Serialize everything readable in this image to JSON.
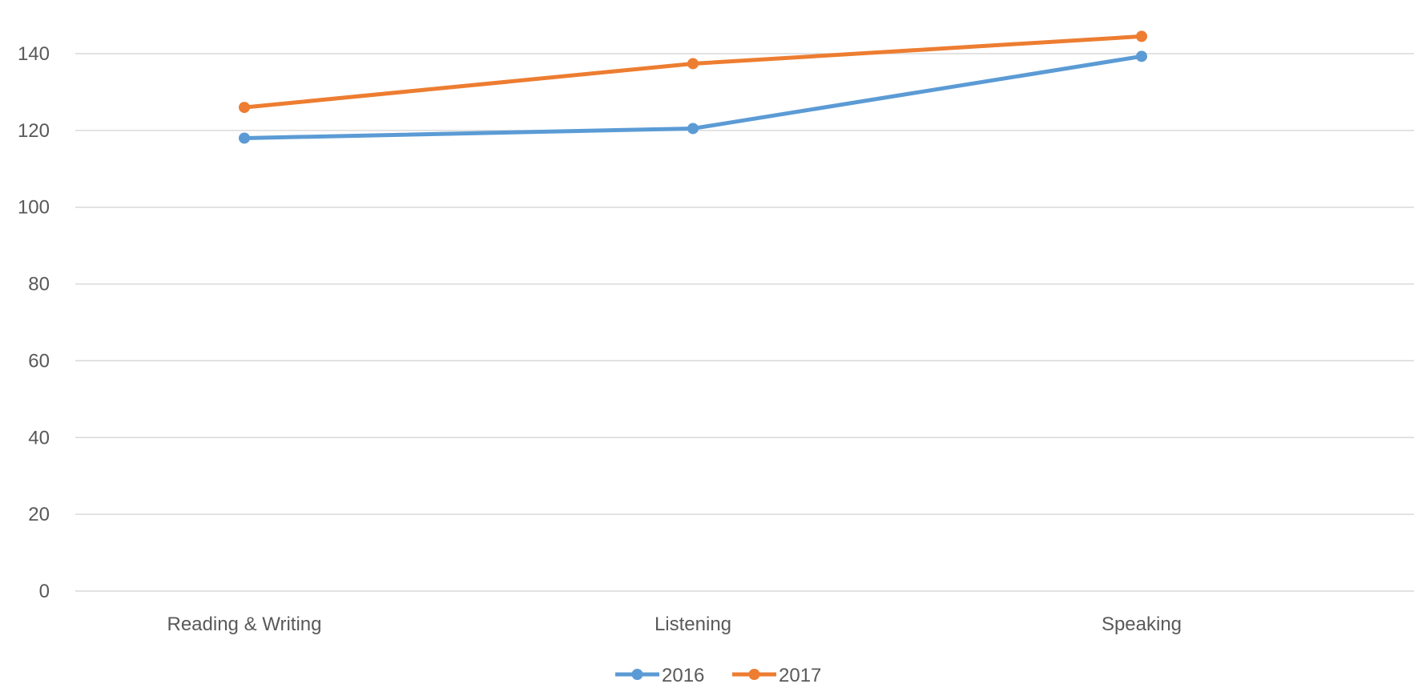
{
  "chart_data": {
    "type": "line",
    "categories": [
      "Reading & Writing",
      "Listening",
      "Speaking"
    ],
    "series": [
      {
        "name": "2016",
        "values": [
          118,
          120.5,
          139.3
        ],
        "color": "#5B9BD5"
      },
      {
        "name": "2017",
        "values": [
          126,
          137.4,
          144.5
        ],
        "color": "#ED7D31"
      }
    ],
    "ylim": [
      0,
      140
    ],
    "yticks": [
      "0",
      "20",
      "40",
      "60",
      "80",
      "100",
      "120",
      "140"
    ],
    "grid": true,
    "legend_position": "bottom",
    "title": "",
    "xlabel": "",
    "ylabel": ""
  }
}
